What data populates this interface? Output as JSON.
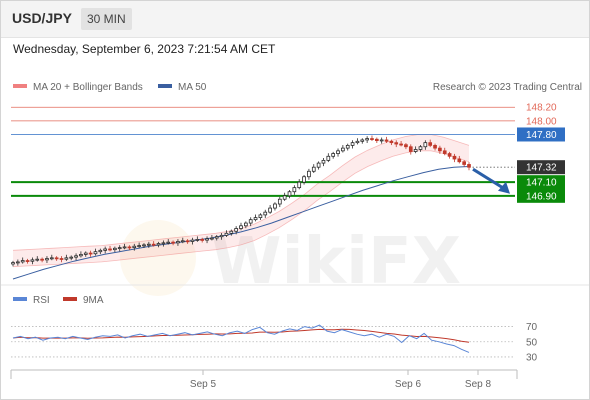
{
  "header": {
    "symbol": "USD/JPY",
    "timeframe": "30 MIN"
  },
  "datetime": "Wednesday, September 6, 2023 7:21:54 AM CET",
  "legend": {
    "bollinger_label": "MA 20 + Bollinger Bands",
    "ma50_label": "MA 50",
    "credit": "Research © 2023 Trading Central"
  },
  "watermark": "WikiFX",
  "colors": {
    "bollinger": "#f08080",
    "ma50": "#3a5fa0",
    "resistance": "#e26a5a",
    "pivot": "#2f6fc4",
    "support": "#0a8a0a",
    "candle_up": "#2b2b2b",
    "candle_down": "#c0392b",
    "rsi": "#5a86d6",
    "rsi_ma": "#c0392b",
    "arrow": "#2a5fa8"
  },
  "chart_data": {
    "type": "candlestick",
    "y_range": [
      145.65,
      148.35
    ],
    "levels": [
      {
        "value": 148.2,
        "label": "148.20",
        "kind": "resistance"
      },
      {
        "value": 148.0,
        "label": "148.00",
        "kind": "resistance"
      },
      {
        "value": 147.8,
        "label": "147.80",
        "kind": "pivot"
      },
      {
        "value": 147.32,
        "label": "147.32",
        "kind": "last"
      },
      {
        "value": 147.1,
        "label": "147.10",
        "kind": "support"
      },
      {
        "value": 146.9,
        "label": "146.90",
        "kind": "support"
      }
    ],
    "x_ticks": [
      "Sep 5",
      "Sep 6",
      "Sep 8"
    ],
    "close": [
      145.92,
      145.93,
      145.95,
      145.94,
      145.96,
      145.97,
      145.96,
      145.98,
      145.99,
      145.98,
      145.97,
      145.99,
      146.0,
      146.02,
      146.04,
      146.06,
      146.05,
      146.08,
      146.1,
      146.12,
      146.11,
      146.13,
      146.14,
      146.15,
      146.14,
      146.16,
      146.17,
      146.18,
      146.19,
      146.18,
      146.2,
      146.21,
      146.22,
      146.21,
      146.23,
      146.24,
      146.23,
      146.25,
      146.26,
      146.25,
      146.27,
      146.28,
      146.3,
      146.32,
      146.35,
      146.38,
      146.42,
      146.46,
      146.5,
      146.55,
      146.58,
      146.62,
      146.66,
      146.72,
      146.78,
      146.85,
      146.9,
      146.96,
      147.02,
      147.1,
      147.18,
      147.26,
      147.32,
      147.38,
      147.42,
      147.48,
      147.52,
      147.56,
      147.6,
      147.64,
      147.68,
      147.7,
      147.72,
      147.74,
      147.73,
      147.71,
      147.72,
      147.7,
      147.68,
      147.66,
      147.65,
      147.62,
      147.55,
      147.58,
      147.62,
      147.68,
      147.64,
      147.6,
      147.56,
      147.52,
      147.48,
      147.44,
      147.4,
      147.36,
      147.32
    ],
    "ma20": [
      145.98,
      145.99,
      146.0,
      146.01,
      146.02,
      146.03,
      146.04,
      146.05,
      146.07,
      146.09,
      146.11,
      146.13,
      146.15,
      146.17,
      146.19,
      146.21,
      146.23,
      146.26,
      146.3,
      146.36,
      146.45,
      146.55,
      146.67,
      146.8,
      146.95,
      147.08,
      147.22,
      147.35,
      147.45,
      147.53,
      147.6,
      147.65,
      147.68,
      147.68,
      147.64,
      147.58,
      147.52
    ],
    "bollinger_width": 0.12,
    "ma50": [
      145.68,
      145.75,
      145.82,
      145.88,
      145.94,
      145.99,
      146.04,
      146.08,
      146.12,
      146.16,
      146.19,
      146.22,
      146.25,
      146.28,
      146.32,
      146.37,
      146.43,
      146.5,
      146.58,
      146.66,
      146.74,
      146.82,
      146.9,
      146.98,
      147.05,
      147.12,
      147.18,
      147.24,
      147.29,
      147.32,
      147.33
    ],
    "rsi": {
      "label": "RSI",
      "ma_label": "9MA",
      "levels": [
        70,
        50,
        30
      ],
      "y_range": [
        22,
        80
      ],
      "values": [
        55,
        57,
        54,
        56,
        52,
        55,
        56,
        54,
        57,
        55,
        53,
        56,
        58,
        57,
        59,
        55,
        58,
        60,
        57,
        59,
        61,
        58,
        60,
        62,
        59,
        61,
        63,
        60,
        58,
        62,
        64,
        61,
        66,
        69,
        62,
        60,
        64,
        67,
        65,
        70,
        68,
        72,
        64,
        62,
        66,
        63,
        60,
        58,
        60,
        56,
        60,
        57,
        49,
        58,
        54,
        61,
        52,
        50,
        47,
        45,
        40,
        36
      ]
    }
  }
}
